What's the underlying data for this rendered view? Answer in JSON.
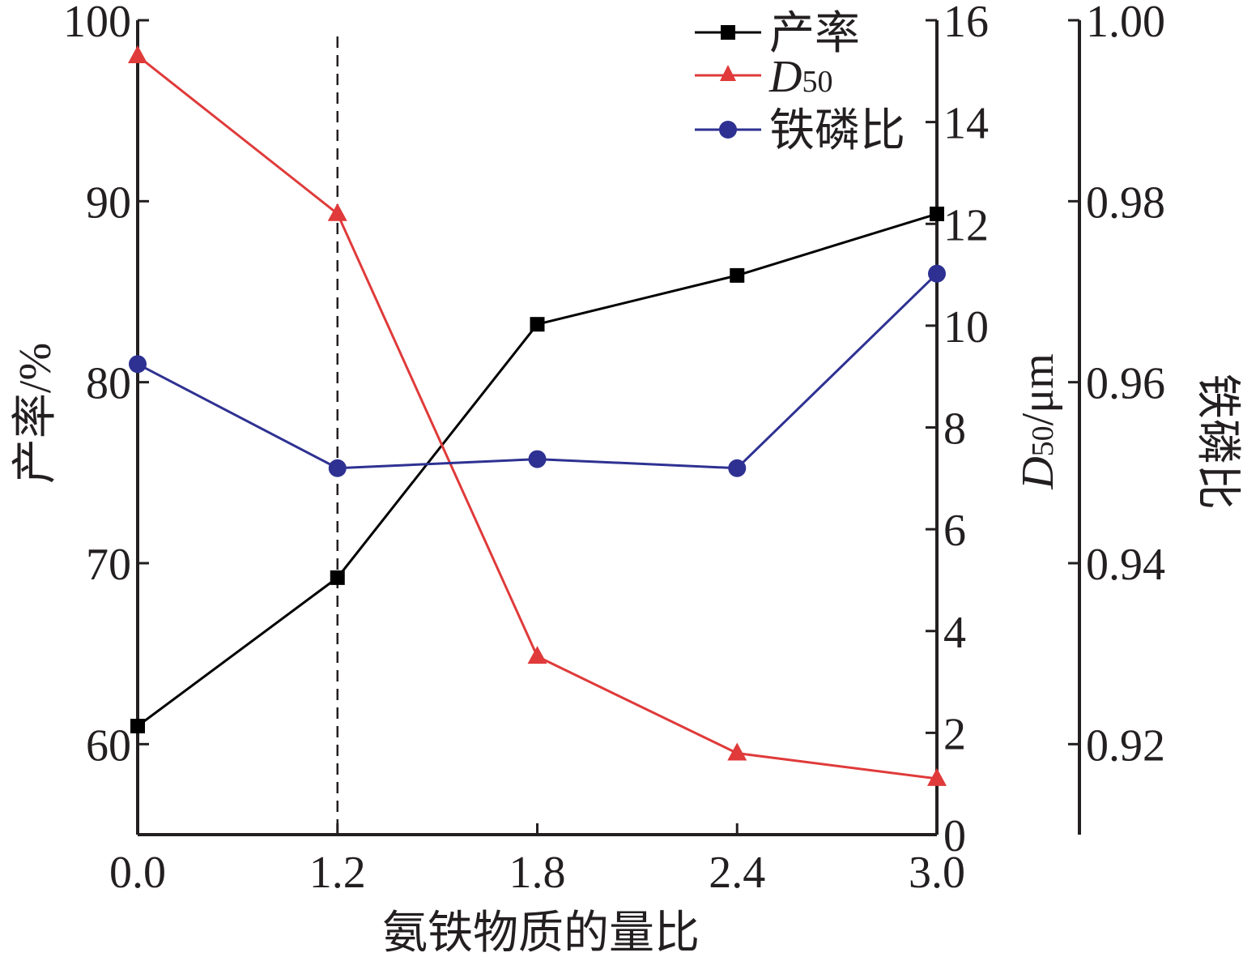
{
  "chart_data": {
    "type": "line",
    "x": [
      "0.0",
      "1.2",
      "1.8",
      "2.4",
      "3.0"
    ],
    "xlabel": "氨铁物质的量比",
    "reference_line_x": "1.2",
    "axes": {
      "left": {
        "label": "产率/%",
        "ticks": [
          "60",
          "70",
          "80",
          "90",
          "100"
        ],
        "ylim": [
          55,
          100
        ]
      },
      "right1": {
        "label_main": "D",
        "label_sub": "50",
        "label_unit": "/μm",
        "ticks": [
          "0",
          "2",
          "4",
          "6",
          "8",
          "10",
          "12",
          "14",
          "16"
        ],
        "ylim": [
          0,
          16
        ]
      },
      "right2": {
        "label": "铁磷比",
        "ticks": [
          "0.92",
          "0.94",
          "0.96",
          "0.98",
          "1.00"
        ],
        "ylim": [
          0.91,
          1.0
        ]
      }
    },
    "series": [
      {
        "name": "产率",
        "axis": "left",
        "color": "#000000",
        "marker": "square",
        "values": [
          61.0,
          69.2,
          83.2,
          85.9,
          89.3
        ]
      },
      {
        "name_main": "D",
        "name_sub": "50",
        "axis": "right1",
        "color": "#e03a3a",
        "marker": "triangle",
        "values": [
          15.3,
          12.2,
          3.5,
          1.6,
          1.1
        ]
      },
      {
        "name": "铁磷比",
        "axis": "right2",
        "color": "#2e3192",
        "marker": "circle",
        "values": [
          0.962,
          0.9505,
          0.9515,
          0.9505,
          0.972
        ]
      }
    ],
    "grid": false,
    "legend_position": "top-right"
  }
}
